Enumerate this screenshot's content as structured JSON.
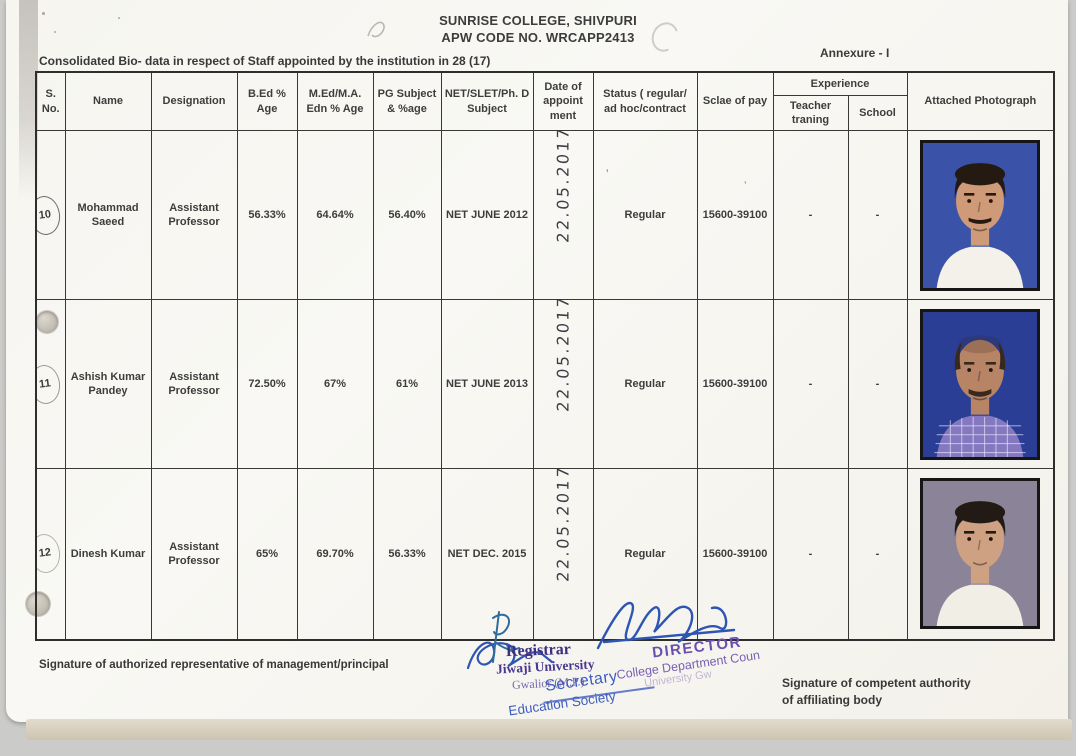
{
  "colors": {
    "stamp_blue": "#3e5dc0",
    "stamp_purple": "#6b4fae",
    "ink_blue": "#2e55b4",
    "table_line": "#383836"
  },
  "header": {
    "title_line1": "SUNRISE COLLEGE, SHIVPURI",
    "title_line2": "APW CODE NO. WRCAPP2413",
    "annexure": "Annexure - I",
    "subtitle": "Consolidated Bio- data in respect of Staff appointed by the institution in 28 (17)"
  },
  "table": {
    "header": {
      "s_no": "S. No.",
      "name": "Name",
      "designation": "Designation",
      "bed": "B.Ed % Age",
      "med": "M.Ed/M.A. Edn % Age",
      "pg": "PG Subject & %age",
      "net": "NET/SLET/Ph. D Subject",
      "date": "Date of appoint ment",
      "status": "Status ( regular/ ad hoc/contract",
      "pay": "Sclae of pay",
      "experience": "Experience",
      "teacher_training": "Teacher traning",
      "school": "School",
      "photo": "Attached Photograph"
    },
    "rows": [
      {
        "sno": "10",
        "name": "Mohammad Saeed",
        "designation": "Assistant Professor",
        "bed": "56.33%",
        "med": "64.64%",
        "pg": "56.40%",
        "net": "NET JUNE 2012",
        "date": "22.05.2017",
        "status": "Regular",
        "pay": "15600-39100",
        "teacher_training": "-",
        "school": "-",
        "photo": {
          "bg": "#3a53a8",
          "skin": "#cf9a77",
          "shirt": "#f3f1ea",
          "hair": "#241a12",
          "bald": false,
          "mustache": true,
          "check": false
        }
      },
      {
        "sno": "11",
        "name": "Ashish Kumar Pandey",
        "designation": "Assistant Professor",
        "bed": "72.50%",
        "med": "67%",
        "pg": "61%",
        "net": "NET JUNE 2013",
        "date": "22.05.2017",
        "status": "Regular",
        "pay": "15600-39100",
        "teacher_training": "-",
        "school": "-",
        "photo": {
          "bg": "#2a3e96",
          "skin": "#b88466",
          "shirt": "#8478c0",
          "hair": "#38291e",
          "bald": true,
          "mustache": true,
          "check": true
        }
      },
      {
        "sno": "12",
        "name": "Dinesh Kumar",
        "designation": "Assistant Professor",
        "bed": "65%",
        "med": "69.70%",
        "pg": "56.33%",
        "net": "NET DEC. 2015",
        "date": "22.05.2017",
        "status": "Regular",
        "pay": "15600-39100",
        "teacher_training": "-",
        "school": "-",
        "photo": {
          "bg": "#8b8498",
          "skin": "#cfa183",
          "shirt": "#f1eee6",
          "hair": "#221a14",
          "bald": false,
          "mustache": false,
          "check": false
        }
      }
    ]
  },
  "footer": {
    "left_label": "Signature of authorized representative of management/principal",
    "right_label_line1": "Signature of competent authority",
    "right_label_line2": "of affiliating body",
    "stamps": {
      "secretary": {
        "line1": "Secretary",
        "line2": "Education Society"
      },
      "registrar": {
        "line1": "Registrar",
        "line2": "Jiwaji University",
        "line3": "Gwalior (M.P.)"
      },
      "director": {
        "line1": "DIRECTOR",
        "line2": "College Department Coun",
        "line3": "University Gw"
      }
    }
  }
}
